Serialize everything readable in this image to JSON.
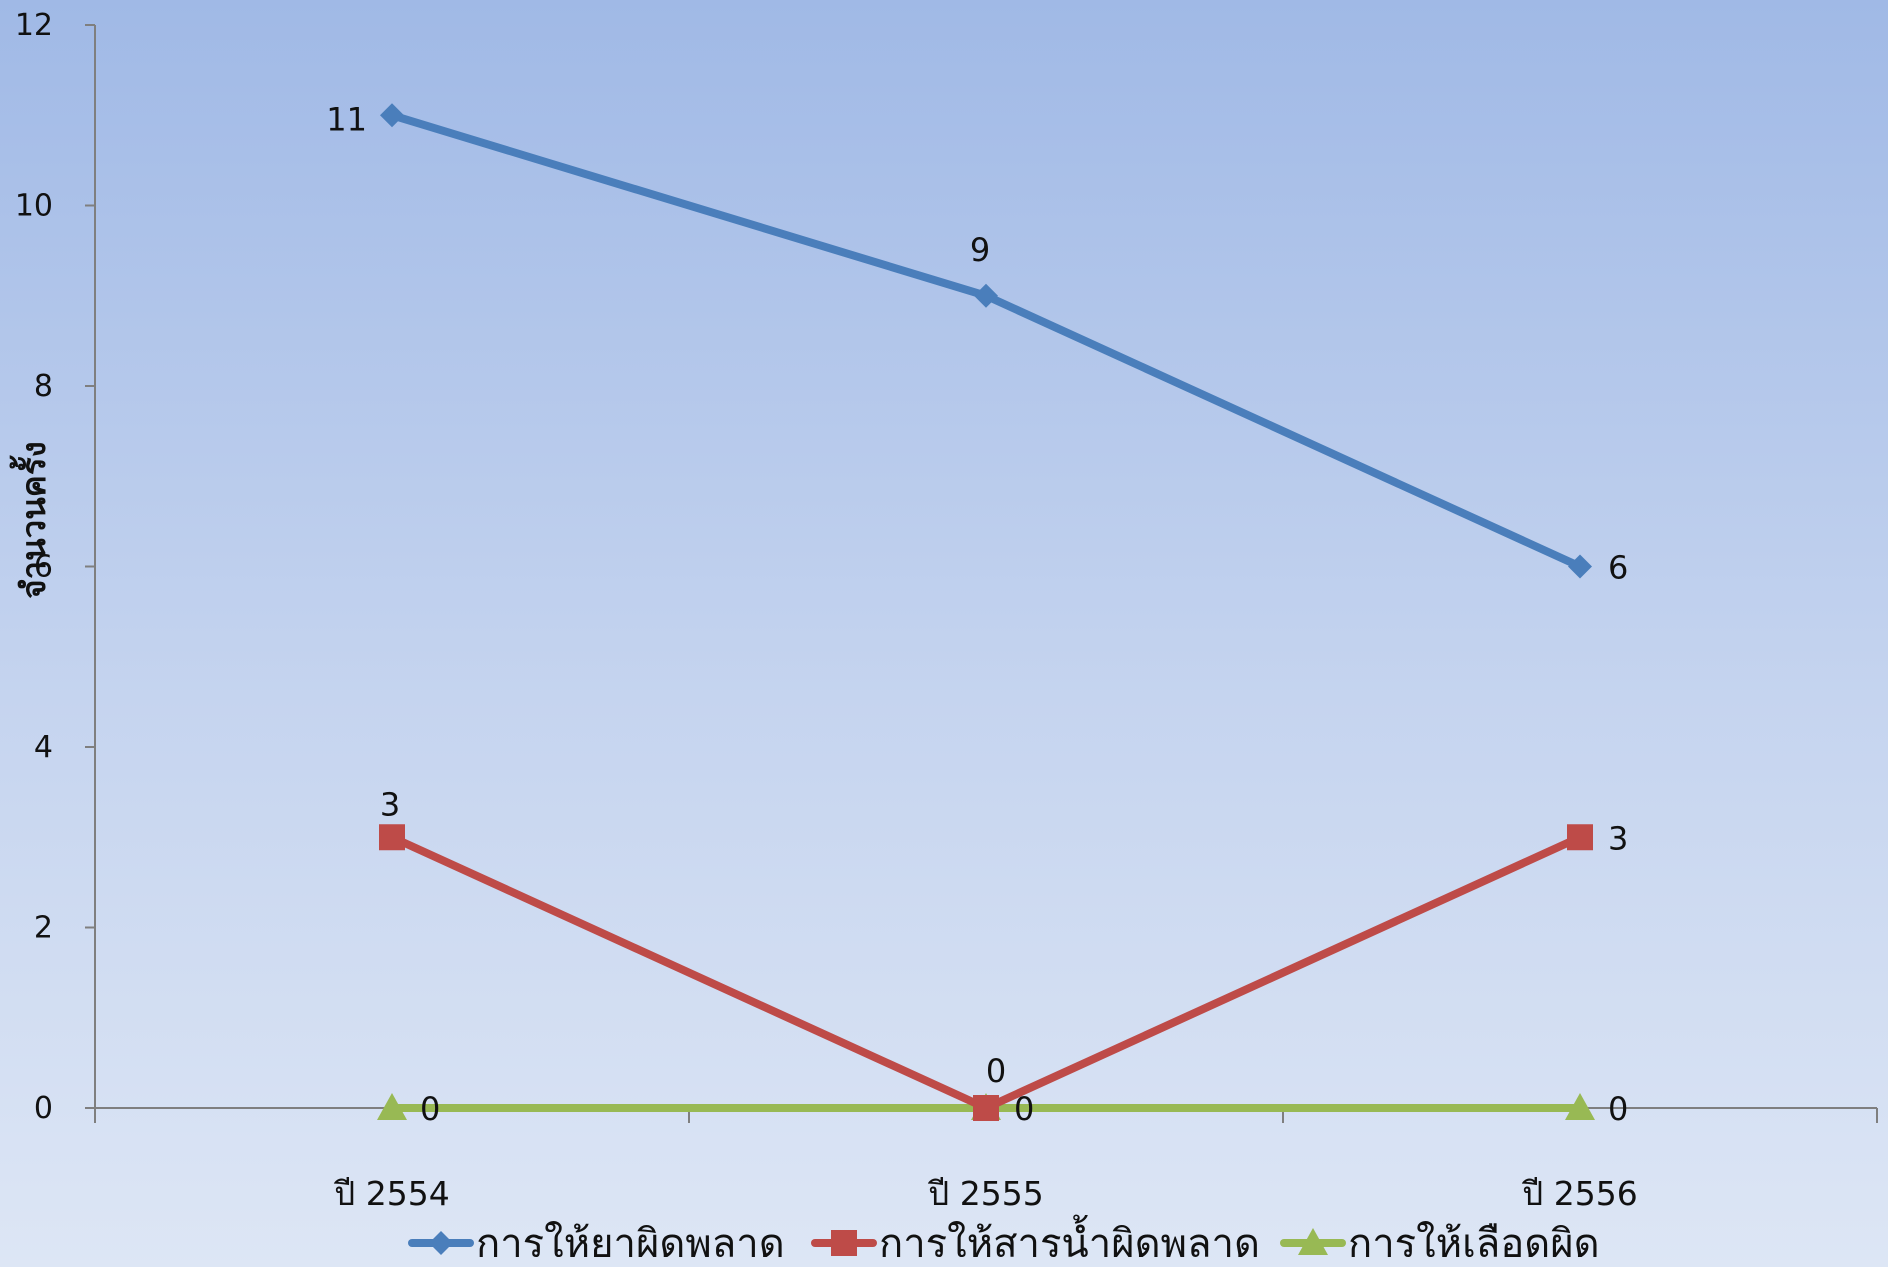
{
  "chart_data": {
    "type": "line",
    "title": "",
    "xlabel": "",
    "ylabel": "จำนวนครั้ง",
    "categories": [
      "ปี 2554",
      "ปี 2555",
      "ปี 2556"
    ],
    "ylim": [
      0,
      12
    ],
    "yticks": [
      0,
      2,
      4,
      6,
      8,
      10,
      12
    ],
    "grid": false,
    "legend_position": "bottom",
    "series": [
      {
        "name": "การให้ยาผิดพลาด",
        "values": [
          11,
          9,
          6
        ],
        "color": "#4a7ebb",
        "marker": "diamond"
      },
      {
        "name": "การให้สารน้ำผิดพลาด",
        "values": [
          3,
          0,
          3
        ],
        "color": "#be4b48",
        "marker": "square"
      },
      {
        "name": "การให้เลือดผิด",
        "values": [
          0,
          0,
          0
        ],
        "color": "#98b954",
        "marker": "triangle"
      }
    ]
  }
}
